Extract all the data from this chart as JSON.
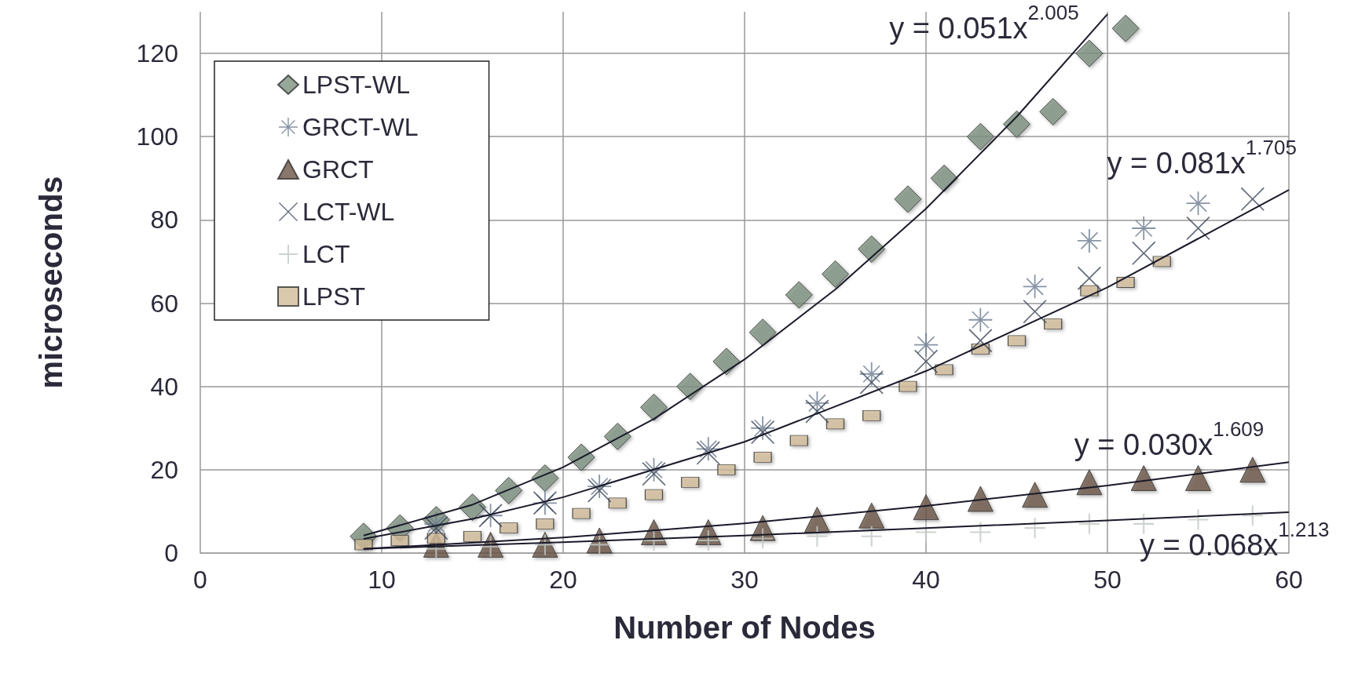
{
  "chart_data": {
    "type": "scatter",
    "xlabel": "Number of Nodes",
    "ylabel": "microseconds",
    "xlim": [
      0,
      60
    ],
    "xticks": [
      0,
      10,
      20,
      30,
      40,
      50,
      60
    ],
    "ylim": [
      0,
      130
    ],
    "yticks": [
      0,
      20,
      40,
      60,
      80,
      100,
      120
    ],
    "grid": true,
    "legend": "top left",
    "series": [
      {
        "name": "LPST-WL",
        "color": "#7d9180",
        "marker": "diamond",
        "x": [
          9,
          11,
          13,
          15,
          17,
          19,
          21,
          23,
          25,
          27,
          29,
          31,
          33,
          35,
          37,
          39,
          41,
          43,
          45,
          47,
          49,
          51
        ],
        "values": [
          4,
          6,
          8,
          11,
          15,
          18,
          23,
          28,
          35,
          40,
          46,
          53,
          62,
          67,
          73,
          85,
          90,
          100,
          103,
          106,
          120,
          126
        ]
      },
      {
        "name": "GRCT-WL",
        "color": "#6b7a90",
        "marker": "star",
        "x": [
          13,
          16,
          19,
          22,
          25,
          28,
          31,
          34,
          37,
          40,
          43,
          46,
          49,
          52,
          55
        ],
        "values": [
          7,
          9,
          12,
          16,
          20,
          25,
          30,
          36,
          43,
          50,
          56,
          64,
          75,
          78,
          84
        ]
      },
      {
        "name": "GRCT",
        "color": "#6b5547",
        "marker": "triangle",
        "x": [
          13,
          16,
          19,
          22,
          25,
          28,
          31,
          34,
          37,
          40,
          43,
          46,
          49,
          52,
          55,
          58
        ],
        "values": [
          2,
          2,
          2,
          3,
          5,
          5,
          6,
          8,
          9,
          11,
          13,
          14,
          17,
          18,
          18,
          20
        ]
      },
      {
        "name": "LCT-WL",
        "color": "#3b4658",
        "marker": "cross",
        "x": [
          13,
          16,
          19,
          22,
          25,
          28,
          31,
          34,
          37,
          40,
          43,
          46,
          49,
          52,
          55,
          58
        ],
        "values": [
          6,
          9,
          12,
          15,
          19,
          24,
          29,
          34,
          41,
          46,
          51,
          58,
          66,
          72,
          78,
          85
        ]
      },
      {
        "name": "LCT",
        "color": "#c0c8c4",
        "x": [
          13,
          16,
          19,
          22,
          25,
          28,
          31,
          34,
          37,
          40,
          43,
          46,
          49,
          52,
          55,
          58
        ],
        "values": [
          1,
          1.5,
          2,
          2,
          3,
          3,
          3.5,
          4,
          4,
          5,
          5,
          6,
          7,
          7,
          8,
          9
        ]
      },
      {
        "name": "LPST",
        "color": "#d2bb9a",
        "marker": "square",
        "x": [
          9,
          11,
          13,
          15,
          17,
          19,
          21,
          23,
          25,
          27,
          29,
          31,
          33,
          35,
          37,
          39,
          41,
          43,
          45,
          47,
          49,
          51,
          53
        ],
        "values": [
          2,
          3,
          3.5,
          4,
          6,
          7,
          9.5,
          12,
          14,
          17,
          20,
          23,
          27,
          31,
          33,
          40,
          44,
          49,
          51,
          55,
          63,
          65,
          70
        ]
      },
      {
        "type": "line",
        "color": "#1a1a2a",
        "marker": "none",
        "x": [
          9,
          15,
          20,
          25,
          30,
          35,
          40,
          45,
          50
        ],
        "values": [
          4.2,
          11.6,
          20.6,
          32.2,
          46.5,
          63.3,
          82.7,
          104.8,
          129.4
        ]
      },
      {
        "type": "line",
        "color": "#1a1a2a",
        "marker": "none",
        "x": [
          9,
          15,
          20,
          30,
          40,
          50,
          60
        ],
        "values": [
          3.4,
          8.2,
          13.4,
          26.7,
          43.7,
          63.8,
          87.2
        ]
      },
      {
        "type": "line",
        "color": "#1a1a2a",
        "marker": "none",
        "x": [
          9,
          20,
          30,
          40,
          50,
          60
        ],
        "values": [
          1.0,
          3.7,
          7.1,
          11.3,
          16.2,
          21.8
        ]
      },
      {
        "type": "line",
        "color": "#1a1a2a",
        "marker": "none",
        "x": [
          9,
          20,
          30,
          40,
          50,
          60
        ],
        "values": [
          1.0,
          2.6,
          4.2,
          6.0,
          7.8,
          9.8
        ]
      }
    ],
    "annotations": [
      "y = 0.051x$^{2.005}$",
      "y = 0.081x$^{1.705}$",
      "y = 0.030x$^{1.609}$",
      "y = 0.068x$^{1.213}$"
    ]
  }
}
